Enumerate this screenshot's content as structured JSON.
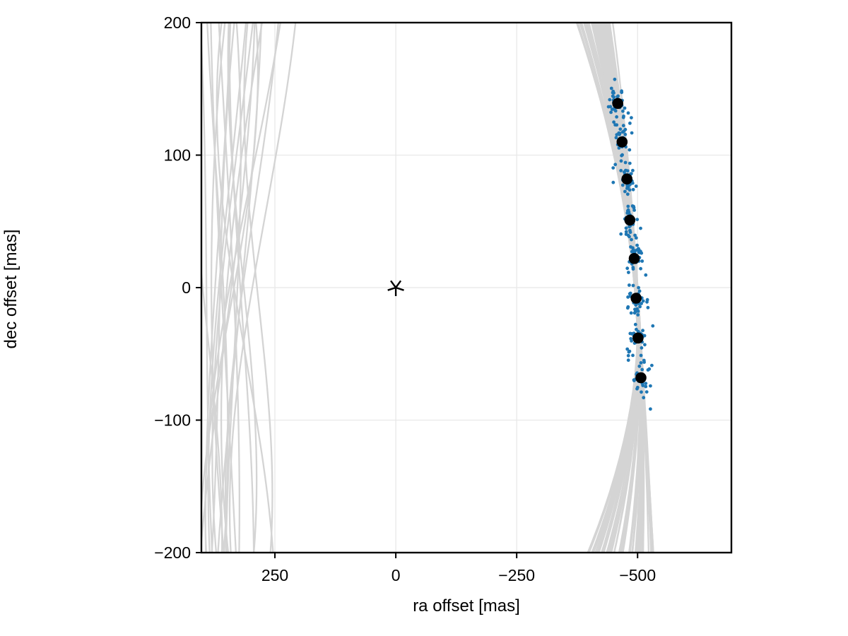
{
  "figure": {
    "title": "",
    "xlabel": "ra offset [mas]",
    "ylabel": "dec offset [mas]",
    "background": "#ffffff"
  },
  "chart_data": {
    "type": "scatter",
    "title": "",
    "xlabel": "ra offset [mas]",
    "ylabel": "dec offset [mas]",
    "xlim": [
      402,
      -694
    ],
    "ylim": [
      -200,
      200
    ],
    "x_axis_inverted": true,
    "grid": true,
    "legend": "none",
    "x_ticks": [
      {
        "value": 250,
        "label": "250"
      },
      {
        "value": 0,
        "label": "0"
      },
      {
        "value": -250,
        "label": "−250"
      },
      {
        "value": -500,
        "label": "−500"
      }
    ],
    "y_ticks": [
      {
        "value": 200,
        "label": "200"
      },
      {
        "value": 100,
        "label": "100"
      },
      {
        "value": 0,
        "label": "0"
      },
      {
        "value": -100,
        "label": "−100"
      },
      {
        "value": -200,
        "label": "−200"
      }
    ],
    "star": {
      "ra": 0,
      "dec": 0,
      "marker": "asterisk-5-spoke",
      "color": "#000000"
    },
    "observed_epochs": {
      "color": "#000000",
      "marker": "filled-circle",
      "radius_px": 7.8,
      "points": [
        {
          "ra": -459,
          "dec": 139
        },
        {
          "ra": -468,
          "dec": 110
        },
        {
          "ra": -478,
          "dec": 82
        },
        {
          "ra": -484,
          "dec": 51
        },
        {
          "ra": -493,
          "dec": 22
        },
        {
          "ra": -497,
          "dec": -8
        },
        {
          "ra": -501,
          "dec": -38
        },
        {
          "ra": -507,
          "dec": -68
        }
      ]
    },
    "predicted_position_samples": {
      "color": "#1f77b4",
      "radius_px": 2.4,
      "seed": 11,
      "per_epoch_core": 30,
      "per_epoch_tail": 6,
      "core_sigma_ra_mas": 8.8,
      "core_sigma_dec_mas": 7.0,
      "tail_sigma_ra_mas": 13.0,
      "tail_sigma_dec_mas": 11.5
    },
    "orbit_samples": {
      "color": "#d4d4d4",
      "stroke_width_px": 2.3,
      "right_band": {
        "count": 55,
        "seed": 7,
        "waist_dec_mas": -23,
        "top_offset_mas_range": [
          -66,
          15
        ],
        "bottom_offset_mas_range": [
          -117,
          26
        ],
        "waist_jitter_mas": 6
      },
      "left_family": {
        "count": 22,
        "seed": 3,
        "top_entry_ra_range": [
          406,
          185
        ],
        "bottom_exit_ra_range": [
          406,
          246
        ],
        "bow_ra_range": [
          -37,
          66
        ]
      }
    },
    "grid_color": "#e8e8e8",
    "axis_color": "#000000"
  }
}
